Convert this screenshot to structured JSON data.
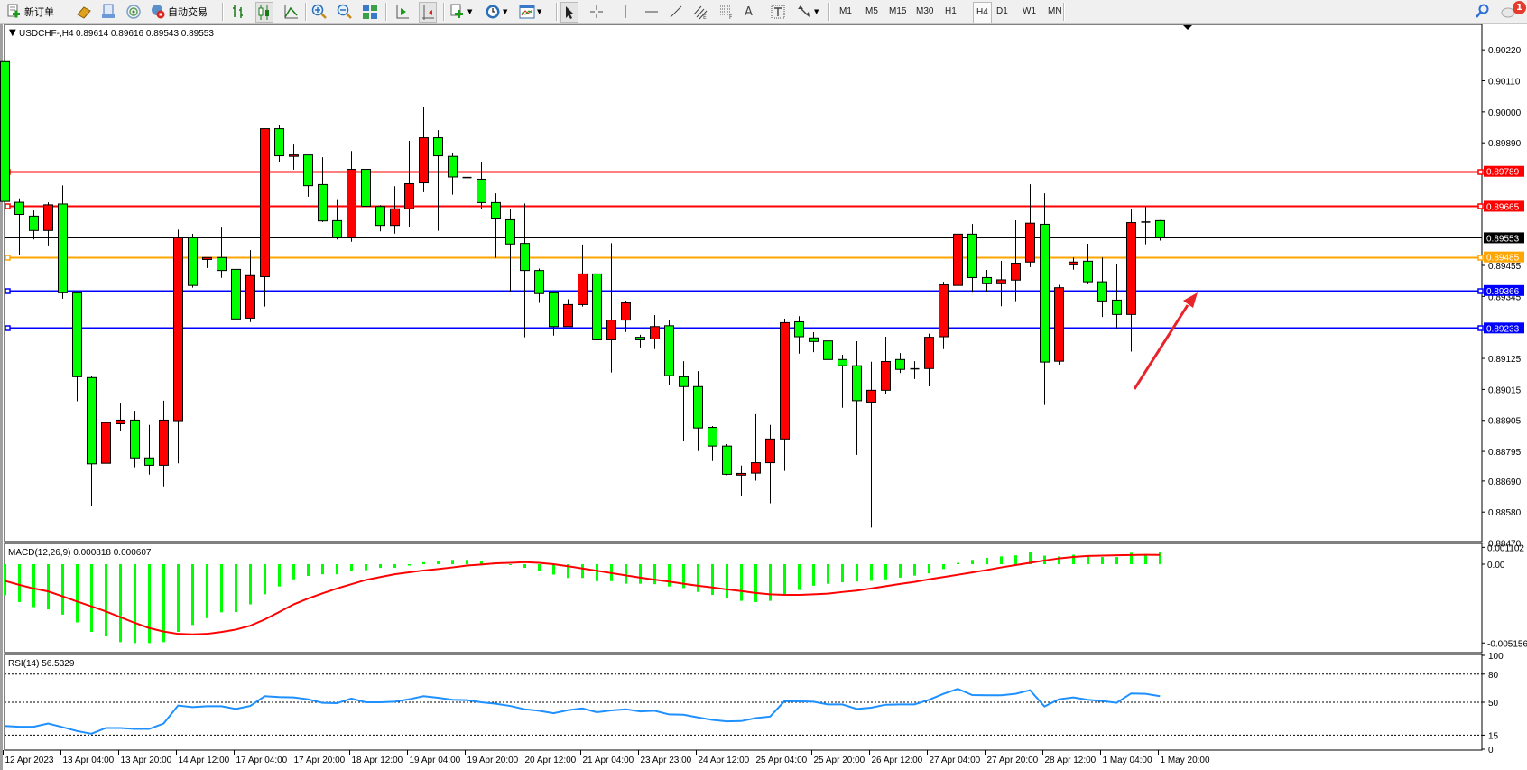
{
  "toolbar": {
    "new_order_label": "新订单",
    "auto_trading_label": "自动交易",
    "timeframes": [
      "M1",
      "M5",
      "M15",
      "M30",
      "H1",
      "H4",
      "D1",
      "W1",
      "MN"
    ],
    "active_timeframe": "H4",
    "notification_count": "1"
  },
  "chart": {
    "header_symbol": "USDCHF-,H4",
    "header_ohlc": "0.89614 0.89616 0.89543 0.89553",
    "macd_label": "MACD(12,26,9) 0.000818 0.000607",
    "rsi_label": "RSI(14) 56.5329"
  },
  "chart_data": {
    "type": "candlestick",
    "symbol": "USDCHF-",
    "timeframe": "H4",
    "ylim": [
      0.88475,
      0.90307
    ],
    "bullish_color": "#ff0000",
    "bearish_color": "#00ff00",
    "price_ticks": [
      "0.90220",
      "0.90110",
      "0.90000",
      "0.89890",
      "0.89455",
      "0.89345",
      "0.89125",
      "0.89015",
      "0.88905",
      "0.88795",
      "0.88690",
      "0.88580",
      "0.88470"
    ],
    "time_labels": [
      "12 Apr 2023",
      "13 Apr 04:00",
      "13 Apr 20:00",
      "14 Apr 12:00",
      "17 Apr 04:00",
      "17 Apr 20:00",
      "18 Apr 12:00",
      "19 Apr 04:00",
      "19 Apr 20:00",
      "20 Apr 12:00",
      "21 Apr 04:00",
      "23 Apr 23:00",
      "24 Apr 12:00",
      "25 Apr 04:00",
      "25 Apr 20:00",
      "26 Apr 12:00",
      "27 Apr 04:00",
      "27 Apr 20:00",
      "28 Apr 12:00",
      "1 May 04:00",
      "1 May 20:00"
    ],
    "time_label_every_bars": 4,
    "ohlc": [
      [
        0.90178,
        0.90215,
        0.89436,
        0.89682
      ],
      [
        0.89679,
        0.89693,
        0.89491,
        0.89636
      ],
      [
        0.8963,
        0.8965,
        0.89547,
        0.89579
      ],
      [
        0.89579,
        0.89679,
        0.89526,
        0.8967
      ],
      [
        0.89673,
        0.89739,
        0.89337,
        0.89358
      ],
      [
        0.89358,
        0.89358,
        0.88973,
        0.8906
      ],
      [
        0.89057,
        0.89063,
        0.88601,
        0.88751
      ],
      [
        0.88753,
        0.88897,
        0.88718,
        0.88897
      ],
      [
        0.88893,
        0.88968,
        0.88866,
        0.88906
      ],
      [
        0.88906,
        0.88939,
        0.88739,
        0.88772
      ],
      [
        0.88772,
        0.88889,
        0.88713,
        0.88746
      ],
      [
        0.88746,
        0.88975,
        0.88671,
        0.88906
      ],
      [
        0.88904,
        0.89582,
        0.88753,
        0.89553
      ],
      [
        0.89553,
        0.89567,
        0.89376,
        0.89384
      ],
      [
        0.89476,
        0.89483,
        0.89446,
        0.89483
      ],
      [
        0.89483,
        0.89589,
        0.89411,
        0.89437
      ],
      [
        0.89441,
        0.89444,
        0.89214,
        0.89265
      ],
      [
        0.89268,
        0.89509,
        0.89254,
        0.89419
      ],
      [
        0.89415,
        0.8994,
        0.89309,
        0.8994
      ],
      [
        0.8994,
        0.89954,
        0.89821,
        0.89844
      ],
      [
        0.89842,
        0.89884,
        0.89795,
        0.89847
      ],
      [
        0.89847,
        0.89847,
        0.89699,
        0.89738
      ],
      [
        0.89742,
        0.89839,
        0.89609,
        0.89613
      ],
      [
        0.89614,
        0.89687,
        0.89547,
        0.89553
      ],
      [
        0.89553,
        0.89861,
        0.89539,
        0.89796
      ],
      [
        0.89796,
        0.89804,
        0.89644,
        0.89665
      ],
      [
        0.89664,
        0.89669,
        0.89576,
        0.89597
      ],
      [
        0.89597,
        0.89736,
        0.89568,
        0.89656
      ],
      [
        0.89656,
        0.89897,
        0.8959,
        0.89745
      ],
      [
        0.89748,
        0.90018,
        0.89715,
        0.89908
      ],
      [
        0.89908,
        0.89935,
        0.89578,
        0.89844
      ],
      [
        0.89842,
        0.89854,
        0.89706,
        0.89769
      ],
      [
        0.89767,
        0.89784,
        0.89703,
        0.89764
      ],
      [
        0.89761,
        0.89823,
        0.89655,
        0.89678
      ],
      [
        0.89678,
        0.89711,
        0.89482,
        0.8962
      ],
      [
        0.89617,
        0.89657,
        0.89363,
        0.89531
      ],
      [
        0.89533,
        0.89675,
        0.892,
        0.89437
      ],
      [
        0.89437,
        0.89444,
        0.89322,
        0.89355
      ],
      [
        0.89358,
        0.89358,
        0.89206,
        0.89238
      ],
      [
        0.89238,
        0.89335,
        0.89238,
        0.89316
      ],
      [
        0.89316,
        0.89529,
        0.89309,
        0.89425
      ],
      [
        0.89425,
        0.89444,
        0.89168,
        0.89191
      ],
      [
        0.89191,
        0.89534,
        0.89075,
        0.89261
      ],
      [
        0.89261,
        0.8933,
        0.89219,
        0.89322
      ],
      [
        0.892,
        0.89209,
        0.89164,
        0.89191
      ],
      [
        0.89194,
        0.89279,
        0.89158,
        0.89238
      ],
      [
        0.89241,
        0.8926,
        0.8903,
        0.89064
      ],
      [
        0.8906,
        0.89115,
        0.88831,
        0.89025
      ],
      [
        0.89025,
        0.8908,
        0.88796,
        0.88878
      ],
      [
        0.8888,
        0.88885,
        0.88761,
        0.88814
      ],
      [
        0.88814,
        0.88821,
        0.88711,
        0.88714
      ],
      [
        0.88711,
        0.88745,
        0.88636,
        0.88717
      ],
      [
        0.88718,
        0.88927,
        0.88691,
        0.88755
      ],
      [
        0.88755,
        0.88889,
        0.88611,
        0.88839
      ],
      [
        0.88839,
        0.89266,
        0.88726,
        0.89252
      ],
      [
        0.89255,
        0.89275,
        0.89142,
        0.89202
      ],
      [
        0.89198,
        0.89218,
        0.89147,
        0.89185
      ],
      [
        0.89187,
        0.89256,
        0.89115,
        0.89121
      ],
      [
        0.89121,
        0.89138,
        0.8895,
        0.89099
      ],
      [
        0.89099,
        0.89186,
        0.88783,
        0.88975
      ],
      [
        0.8897,
        0.89113,
        0.88525,
        0.89012
      ],
      [
        0.89012,
        0.89202,
        0.88999,
        0.89114
      ],
      [
        0.89121,
        0.89144,
        0.89073,
        0.89086
      ],
      [
        0.89086,
        0.89115,
        0.89052,
        0.89088
      ],
      [
        0.89089,
        0.89213,
        0.89026,
        0.892
      ],
      [
        0.89202,
        0.89397,
        0.89158,
        0.89386
      ],
      [
        0.89384,
        0.89756,
        0.89188,
        0.89566
      ],
      [
        0.89566,
        0.89602,
        0.89358,
        0.89412
      ],
      [
        0.89412,
        0.89439,
        0.8936,
        0.8939
      ],
      [
        0.8939,
        0.89471,
        0.8931,
        0.89404
      ],
      [
        0.89403,
        0.89615,
        0.89328,
        0.89463
      ],
      [
        0.89467,
        0.89743,
        0.89449,
        0.89605
      ],
      [
        0.89601,
        0.89711,
        0.8896,
        0.89112
      ],
      [
        0.89115,
        0.89386,
        0.89103,
        0.89376
      ],
      [
        0.89457,
        0.89483,
        0.8944,
        0.89467
      ],
      [
        0.8947,
        0.89532,
        0.89388,
        0.89397
      ],
      [
        0.89397,
        0.89483,
        0.89272,
        0.89329
      ],
      [
        0.89332,
        0.89461,
        0.89232,
        0.89281
      ],
      [
        0.89281,
        0.89657,
        0.89149,
        0.89607
      ],
      [
        0.89609,
        0.89662,
        0.8953,
        0.89609
      ],
      [
        0.89614,
        0.89616,
        0.89543,
        0.89553
      ]
    ],
    "horizontal_lines": [
      {
        "price": "0.89789",
        "color": "#ff0000"
      },
      {
        "price": "0.89665",
        "color": "#ff0000"
      },
      {
        "price": "0.89553",
        "color": "#000000",
        "bid": true
      },
      {
        "price": "0.89485",
        "color": "#ffa500"
      },
      {
        "price": "0.89366",
        "color": "#0000ff"
      },
      {
        "price": "0.89233",
        "color": "#0000ff"
      }
    ],
    "annotation_arrow": {
      "color": "#e8242b",
      "from": [
        76,
        0.8925
      ],
      "to": [
        81,
        0.8939
      ]
    },
    "macd": {
      "params": "12,26,9",
      "ylim": [
        -0.00579,
        0.0013
      ],
      "ticks": [
        "0.001102",
        "0.00",
        "-0.005156"
      ],
      "histogram_color": "#00ff00",
      "signal_color": "#ff0000",
      "histogram": [
        -0.00203,
        -0.00248,
        -0.00281,
        -0.00296,
        -0.0033,
        -0.00381,
        -0.00443,
        -0.00473,
        -0.0051,
        -0.00516,
        -0.00516,
        -0.0051,
        -0.00443,
        -0.00398,
        -0.00353,
        -0.00315,
        -0.00313,
        -0.00263,
        -0.00197,
        -0.00146,
        -0.00099,
        -0.00077,
        -0.00066,
        -0.00066,
        -0.00043,
        -0.00039,
        -0.00024,
        -0.00024,
        -9e-05,
        0.00013,
        0.00023,
        0.00028,
        0.00028,
        0.00021,
        9e-05,
        -6e-05,
        -0.00024,
        -0.00047,
        -0.00068,
        -0.0009,
        -0.0009,
        -0.00111,
        -0.00111,
        -0.00128,
        -0.00128,
        -0.00131,
        -0.00146,
        -0.00156,
        -0.00182,
        -0.00201,
        -0.00221,
        -0.0024,
        -0.00248,
        -0.0024,
        -0.00197,
        -0.00169,
        -0.00141,
        -0.00128,
        -0.00118,
        -0.00113,
        -0.00109,
        -0.00099,
        -0.00088,
        -0.00075,
        -0.0006,
        -0.00032,
        9e-05,
        0.00028,
        0.00041,
        0.00051,
        0.00058,
        0.00081,
        0.00056,
        0.00051,
        0.00062,
        0.00051,
        0.00047,
        0.00047,
        0.00075,
        0.00066,
        0.000818
      ],
      "signal": [
        -0.00109,
        -0.00135,
        -0.00159,
        -0.00178,
        -0.0021,
        -0.00244,
        -0.00276,
        -0.00309,
        -0.00347,
        -0.00384,
        -0.00418,
        -0.00441,
        -0.00456,
        -0.00459,
        -0.00456,
        -0.00444,
        -0.00428,
        -0.00403,
        -0.00362,
        -0.00313,
        -0.00263,
        -0.00225,
        -0.00191,
        -0.00159,
        -0.00131,
        -0.00103,
        -0.00084,
        -0.00066,
        -0.00053,
        -0.00041,
        -0.00032,
        -0.00021,
        -9e-05,
        -2e-05,
        6e-05,
        9e-05,
        0.00013,
        9e-05,
        0,
        -0.00013,
        -0.00028,
        -0.00043,
        -0.00058,
        -0.00073,
        -0.00088,
        -0.00101,
        -0.00114,
        -0.00128,
        -0.00141,
        -0.00152,
        -0.00165,
        -0.00176,
        -0.00188,
        -0.00197,
        -0.00201,
        -0.00201,
        -0.00197,
        -0.00193,
        -0.00182,
        -0.00173,
        -0.00159,
        -0.00144,
        -0.00129,
        -0.00116,
        -0.00099,
        -0.00084,
        -0.00069,
        -0.00054,
        -0.00038,
        -0.00021,
        -6e-05,
        9e-05,
        0.00024,
        0.00038,
        0.00047,
        0.00054,
        0.00056,
        0.00058,
        0.0006,
        0.00061,
        0.000607
      ]
    },
    "rsi": {
      "period": 14,
      "ylim": [
        0,
        100
      ],
      "levels": [
        80,
        50,
        15
      ],
      "ticks": [
        "100",
        "80",
        "50",
        "15",
        "0"
      ],
      "color": "#1e90ff",
      "values": [
        24.8,
        23.9,
        23.9,
        27.4,
        23.5,
        19.4,
        16.5,
        22.6,
        22.6,
        21.6,
        21.6,
        27.4,
        46.5,
        44.8,
        45.8,
        45.8,
        42.9,
        46.1,
        56.5,
        55.5,
        55.2,
        53.2,
        49.4,
        49.0,
        53.9,
        50,
        50,
        50.6,
        53.2,
        56.5,
        54.8,
        52.6,
        52.3,
        50,
        48.4,
        46.1,
        42.6,
        41,
        38.4,
        41.6,
        43.5,
        39.4,
        41.3,
        42.6,
        40.3,
        41,
        37.1,
        36.8,
        33.9,
        31.3,
        29.7,
        30,
        33.2,
        34.8,
        51.3,
        51,
        50.6,
        47.7,
        47.7,
        42.9,
        44.2,
        47.4,
        47.7,
        47.7,
        52.6,
        59,
        64.2,
        57.7,
        57.4,
        57.4,
        59,
        62.9,
        45.5,
        53.2,
        55.2,
        52.6,
        51.3,
        49.4,
        59.4,
        59,
        56.53
      ]
    }
  }
}
